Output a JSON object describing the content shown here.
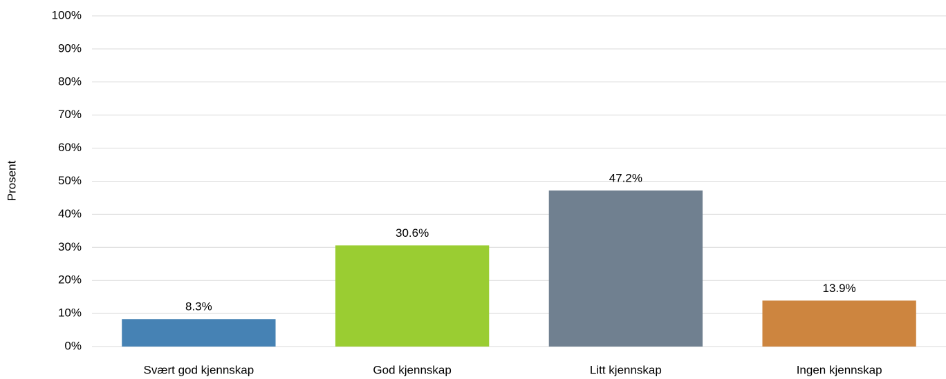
{
  "chart_data": {
    "type": "bar",
    "y_label": "Prosent",
    "categories": [
      "Svært god kjennskap",
      "God kjennskap",
      "Litt kjennskap",
      "Ingen kjennskap"
    ],
    "values": [
      8.3,
      30.6,
      47.2,
      13.9
    ],
    "value_labels": [
      "8.3%",
      "30.6%",
      "47.2%",
      "13.9%"
    ],
    "colors": [
      "#4682b4",
      "#9acd32",
      "#708090",
      "#cd853f"
    ],
    "ylim": [
      0,
      100
    ],
    "yticks": [
      {
        "value": 0,
        "label": "0%"
      },
      {
        "value": 10,
        "label": "10%"
      },
      {
        "value": 20,
        "label": "20%"
      },
      {
        "value": 30,
        "label": "30%"
      },
      {
        "value": 40,
        "label": "40%"
      },
      {
        "value": 50,
        "label": "50%"
      },
      {
        "value": 60,
        "label": "60%"
      },
      {
        "value": 70,
        "label": "70%"
      },
      {
        "value": 80,
        "label": "80%"
      },
      {
        "value": 90,
        "label": "90%"
      },
      {
        "value": 100,
        "label": "100%"
      }
    ],
    "grid": true
  }
}
